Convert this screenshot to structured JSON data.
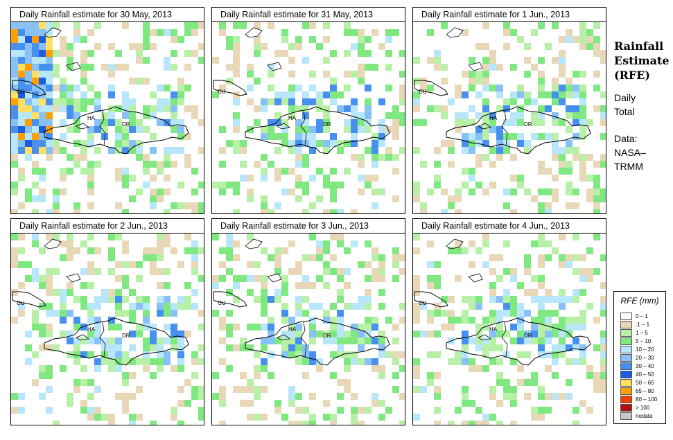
{
  "panels": [
    {
      "title": "Daily Rainfall estimate for  30 May, 2013",
      "grid_seed": 11,
      "heavy_nw": true
    },
    {
      "title": "Daily Rainfall estimate for  31 May, 2013",
      "grid_seed": 23,
      "heavy_nw": false
    },
    {
      "title": "Daily Rainfall estimate for  1 Jun., 2013",
      "grid_seed": 37,
      "heavy_nw": false
    },
    {
      "title": "Daily Rainfall estimate for  2 Jun., 2013",
      "grid_seed": 41,
      "heavy_nw": false
    },
    {
      "title": "Daily Rainfall estimate for  3 Jun., 2013",
      "grid_seed": 53,
      "heavy_nw": false
    },
    {
      "title": "Daily Rainfall estimate for  4 Jun., 2013",
      "grid_seed": 67,
      "heavy_nw": false
    }
  ],
  "map_labels": {
    "cu": "CU",
    "ha": "HA",
    "dr": "DR"
  },
  "side": {
    "title_line1": "Rainfall",
    "title_line2": "Estimate",
    "title_line3": "(RFE)",
    "period_line1": "Daily",
    "period_line2": "Total",
    "source_line1": "Data:",
    "source_line2": "NASA–",
    "source_line3": "TRMM"
  },
  "legend": {
    "title": "RFE (mm)",
    "items": [
      {
        "label": "0 – 1",
        "color": "#ffffff"
      },
      {
        "label": ".1 – 1",
        "color": "#e8d8b8"
      },
      {
        "label": "1 – 5",
        "color": "#b8f0a8"
      },
      {
        "label": "5 – 10",
        "color": "#80e880"
      },
      {
        "label": "10 – 20",
        "color": "#b8e6fa"
      },
      {
        "label": "20 – 30",
        "color": "#88c0f8"
      },
      {
        "label": "30 – 40",
        "color": "#4890f0"
      },
      {
        "label": "40 – 50",
        "color": "#1c5ce0"
      },
      {
        "label": "50 – 65",
        "color": "#ffe060"
      },
      {
        "label": "65 – 80",
        "color": "#ffa000"
      },
      {
        "label": "80 – 100",
        "color": "#f04000"
      },
      {
        "label": "> 100",
        "color": "#b01010"
      },
      {
        "label": "nodata",
        "color": "#c8c8c8"
      }
    ]
  }
}
